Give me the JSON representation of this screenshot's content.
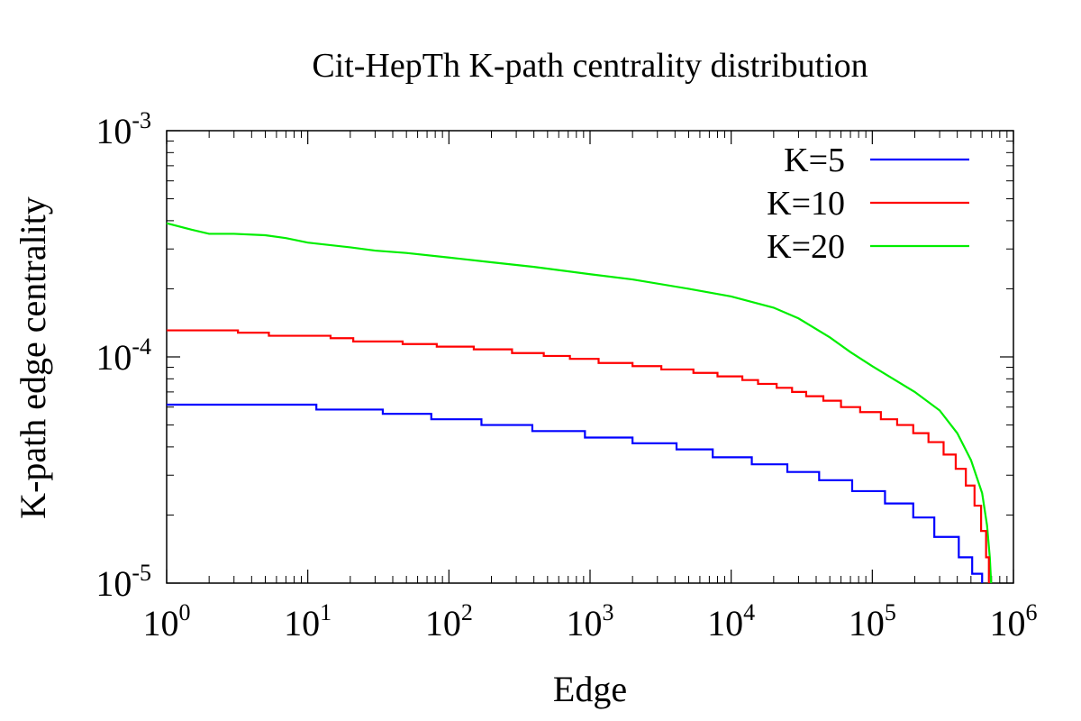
{
  "chart_data": {
    "type": "line",
    "title": "Cit-HepTh K-path centrality distribution",
    "xlabel": "Edge",
    "ylabel": "K-path edge centrality",
    "xscale": "log",
    "yscale": "log",
    "xlim": [
      1,
      1000000
    ],
    "ylim": [
      1e-05,
      0.001
    ],
    "x_ticks": [
      {
        "value": 1,
        "base": "10",
        "exp": "0"
      },
      {
        "value": 10,
        "base": "10",
        "exp": "1"
      },
      {
        "value": 100,
        "base": "10",
        "exp": "2"
      },
      {
        "value": 1000,
        "base": "10",
        "exp": "3"
      },
      {
        "value": 10000,
        "base": "10",
        "exp": "4"
      },
      {
        "value": 100000,
        "base": "10",
        "exp": "5"
      },
      {
        "value": 1000000,
        "base": "10",
        "exp": "6"
      }
    ],
    "y_ticks": [
      {
        "value": 1e-05,
        "base": "10",
        "exp": "-5"
      },
      {
        "value": 0.0001,
        "base": "10",
        "exp": "-4"
      },
      {
        "value": 0.001,
        "base": "10",
        "exp": "-3"
      }
    ],
    "legend_position": "top-right",
    "grid": false,
    "series": [
      {
        "name": "K=5",
        "color": "#0000ff",
        "style": "steps",
        "points": [
          [
            1,
            6.15e-05
          ],
          [
            11,
            6.15e-05
          ],
          [
            11.5,
            5.85e-05
          ],
          [
            33,
            5.85e-05
          ],
          [
            34,
            5.6e-05
          ],
          [
            72,
            5.6e-05
          ],
          [
            75,
            5.3e-05
          ],
          [
            165,
            5.3e-05
          ],
          [
            170,
            5e-05
          ],
          [
            380,
            5e-05
          ],
          [
            390,
            4.7e-05
          ],
          [
            900,
            4.7e-05
          ],
          [
            920,
            4.4e-05
          ],
          [
            1950,
            4.4e-05
          ],
          [
            2000,
            4.15e-05
          ],
          [
            4000,
            4.15e-05
          ],
          [
            4100,
            3.9e-05
          ],
          [
            7200,
            3.9e-05
          ],
          [
            7400,
            3.6e-05
          ],
          [
            13500,
            3.6e-05
          ],
          [
            14000,
            3.35e-05
          ],
          [
            24000,
            3.35e-05
          ],
          [
            25000,
            3.1e-05
          ],
          [
            40000,
            3.1e-05
          ],
          [
            42000,
            2.85e-05
          ],
          [
            70000,
            2.85e-05
          ],
          [
            72000,
            2.55e-05
          ],
          [
            120000,
            2.55e-05
          ],
          [
            123000,
            2.25e-05
          ],
          [
            190000,
            2.25e-05
          ],
          [
            195000,
            1.95e-05
          ],
          [
            270000,
            1.95e-05
          ],
          [
            275000,
            1.6e-05
          ],
          [
            400000,
            1.6e-05
          ],
          [
            410000,
            1.3e-05
          ],
          [
            500000,
            1.3e-05
          ],
          [
            510000,
            1.1e-05
          ],
          [
            580000,
            1.1e-05
          ],
          [
            600000,
            1e-05
          ]
        ]
      },
      {
        "name": "K=10",
        "color": "#ff0000",
        "style": "steps",
        "points": [
          [
            1,
            0.000131
          ],
          [
            3,
            0.000131
          ],
          [
            3.2,
            0.000128
          ],
          [
            5,
            0.000128
          ],
          [
            5.3,
            0.000124
          ],
          [
            14,
            0.000124
          ],
          [
            14.5,
            0.000121
          ],
          [
            20,
            0.000121
          ],
          [
            21,
            0.000117
          ],
          [
            45,
            0.000117
          ],
          [
            47,
            0.000114
          ],
          [
            80,
            0.000114
          ],
          [
            82,
            0.000111
          ],
          [
            140,
            0.000111
          ],
          [
            150,
            0.000108
          ],
          [
            270,
            0.000108
          ],
          [
            280,
            0.000104
          ],
          [
            450,
            0.000104
          ],
          [
            470,
            0.000101
          ],
          [
            700,
            0.000101
          ],
          [
            720,
            9.8e-05
          ],
          [
            1100,
            9.8e-05
          ],
          [
            1150,
            9.4e-05
          ],
          [
            1900,
            9.4e-05
          ],
          [
            2000,
            9.1e-05
          ],
          [
            3100,
            9.1e-05
          ],
          [
            3200,
            8.8e-05
          ],
          [
            5200,
            8.8e-05
          ],
          [
            5400,
            8.5e-05
          ],
          [
            7800,
            8.5e-05
          ],
          [
            8000,
            8.2e-05
          ],
          [
            11500,
            8.2e-05
          ],
          [
            12000,
            7.9e-05
          ],
          [
            15000,
            7.9e-05
          ],
          [
            15500,
            7.6e-05
          ],
          [
            20000,
            7.6e-05
          ],
          [
            21000,
            7.3e-05
          ],
          [
            26000,
            7.3e-05
          ],
          [
            27000,
            7e-05
          ],
          [
            33000,
            7e-05
          ],
          [
            34000,
            6.7e-05
          ],
          [
            43000,
            6.7e-05
          ],
          [
            45000,
            6.4e-05
          ],
          [
            58000,
            6.4e-05
          ],
          [
            60000,
            6e-05
          ],
          [
            80000,
            6e-05
          ],
          [
            82000,
            5.7e-05
          ],
          [
            110000,
            5.7e-05
          ],
          [
            115000,
            5.3e-05
          ],
          [
            145000,
            5.3e-05
          ],
          [
            150000,
            5e-05
          ],
          [
            190000,
            5e-05
          ],
          [
            195000,
            4.6e-05
          ],
          [
            245000,
            4.6e-05
          ],
          [
            250000,
            4.2e-05
          ],
          [
            310000,
            4.2e-05
          ],
          [
            320000,
            3.7e-05
          ],
          [
            380000,
            3.7e-05
          ],
          [
            390000,
            3.2e-05
          ],
          [
            450000,
            3.2e-05
          ],
          [
            460000,
            2.7e-05
          ],
          [
            520000,
            2.7e-05
          ],
          [
            530000,
            2.2e-05
          ],
          [
            580000,
            2.2e-05
          ],
          [
            590000,
            1.7e-05
          ],
          [
            630000,
            1.7e-05
          ],
          [
            640000,
            1.3e-05
          ],
          [
            665000,
            1.3e-05
          ],
          [
            670000,
            1e-05
          ]
        ]
      },
      {
        "name": "K=20",
        "color": "#00ee00",
        "style": "line",
        "points": [
          [
            1,
            0.00039
          ],
          [
            1.5,
            0.000365
          ],
          [
            2,
            0.00035
          ],
          [
            3,
            0.00035
          ],
          [
            5,
            0.000345
          ],
          [
            7,
            0.000335
          ],
          [
            10,
            0.00032
          ],
          [
            20,
            0.000305
          ],
          [
            30,
            0.000295
          ],
          [
            50,
            0.000288
          ],
          [
            100,
            0.000275
          ],
          [
            200,
            0.000262
          ],
          [
            400,
            0.00025
          ],
          [
            1000,
            0.000232
          ],
          [
            2000,
            0.00022
          ],
          [
            5000,
            0.0002
          ],
          [
            10000,
            0.000185
          ],
          [
            20000,
            0.000165
          ],
          [
            30000,
            0.000148
          ],
          [
            50000,
            0.000122
          ],
          [
            70000,
            0.000105
          ],
          [
            100000,
            9.1e-05
          ],
          [
            150000,
            7.8e-05
          ],
          [
            200000,
            7e-05
          ],
          [
            300000,
            5.8e-05
          ],
          [
            400000,
            4.6e-05
          ],
          [
            500000,
            3.5e-05
          ],
          [
            600000,
            2.5e-05
          ],
          [
            650000,
            1.8e-05
          ],
          [
            680000,
            1.3e-05
          ],
          [
            695000,
            1e-05
          ]
        ]
      }
    ]
  }
}
